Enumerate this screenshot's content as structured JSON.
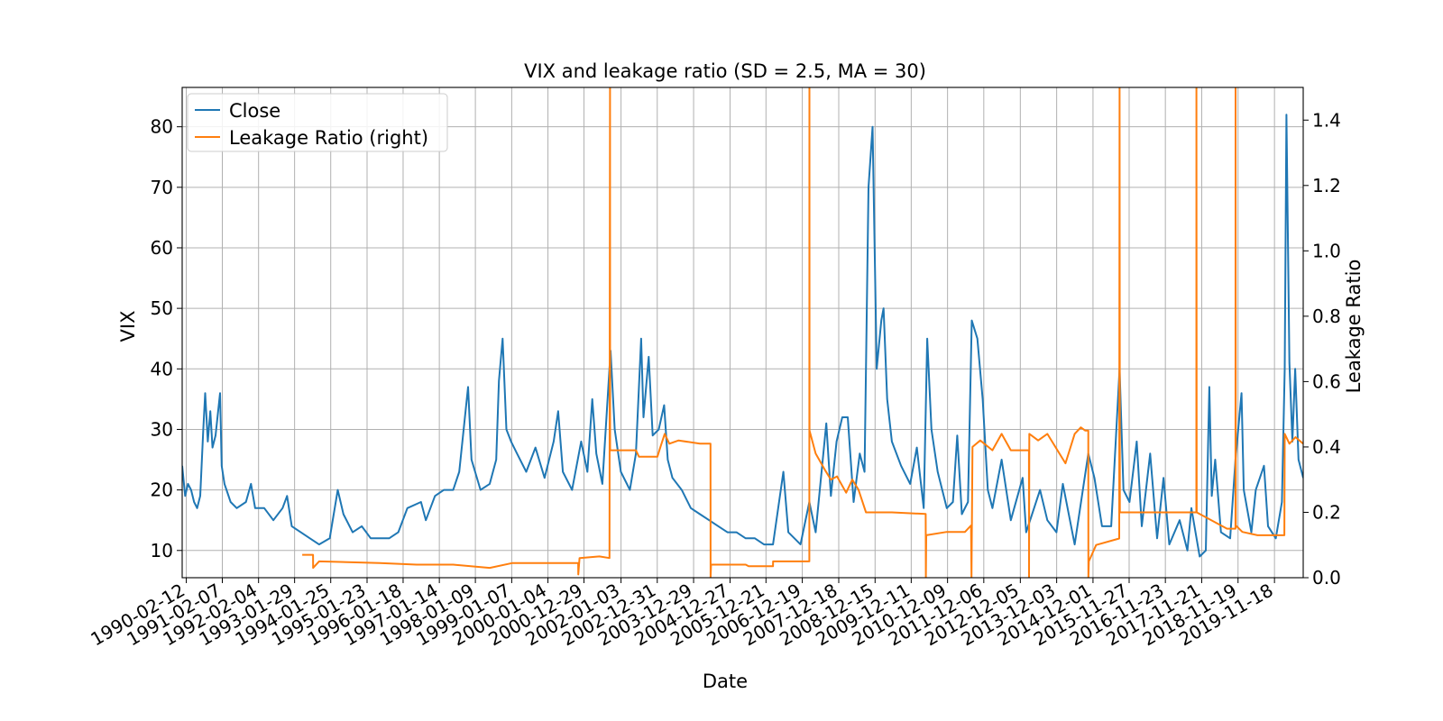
{
  "chart_data": {
    "type": "line",
    "title": "VIX and leakage ratio (SD = 2.5, MA = 30)",
    "xlabel": "Date",
    "ylabel": "VIX",
    "ylabel_right": "Leakage Ratio",
    "xlim": [
      "1990-01-02",
      "2020-08-31"
    ],
    "ylim": [
      5.5,
      86.5
    ],
    "ylim_right": [
      0.0,
      1.5
    ],
    "grid": true,
    "legend_position": "upper-left",
    "x_ticks": [
      "1990-02-12",
      "1991-02-07",
      "1992-02-04",
      "1993-01-29",
      "1994-01-25",
      "1995-01-23",
      "1996-01-18",
      "1997-01-14",
      "1998-01-09",
      "1999-01-07",
      "2000-01-04",
      "2000-12-29",
      "2002-01-03",
      "2002-12-31",
      "2003-12-29",
      "2004-12-27",
      "2005-12-21",
      "2006-12-19",
      "2007-12-18",
      "2008-12-15",
      "2009-12-11",
      "2010-12-09",
      "2011-12-06",
      "2012-12-05",
      "2013-12-03",
      "2014-12-01",
      "2015-11-27",
      "2016-11-23",
      "2017-11-21",
      "2018-11-19",
      "2019-11-18"
    ],
    "y_ticks": [
      10,
      20,
      30,
      40,
      50,
      60,
      70,
      80
    ],
    "y_ticks_right": [
      0.0,
      0.2,
      0.4,
      0.6,
      0.8,
      1.0,
      1.2,
      1.4
    ],
    "series": [
      {
        "name": "Close",
        "axis": "left",
        "color": "#1f77b4",
        "points": [
          [
            "1990-01-02",
            24
          ],
          [
            "1990-02-01",
            19
          ],
          [
            "1990-03-01",
            21
          ],
          [
            "1990-04-01",
            20
          ],
          [
            "1990-05-01",
            18
          ],
          [
            "1990-06-01",
            17
          ],
          [
            "1990-07-01",
            19
          ],
          [
            "1990-08-01",
            30
          ],
          [
            "1990-08-20",
            36
          ],
          [
            "1990-09-15",
            28
          ],
          [
            "1990-10-10",
            33
          ],
          [
            "1990-11-01",
            27
          ],
          [
            "1990-12-01",
            29
          ],
          [
            "1991-01-15",
            36
          ],
          [
            "1991-02-01",
            24
          ],
          [
            "1991-03-01",
            21
          ],
          [
            "1991-05-01",
            18
          ],
          [
            "1991-07-01",
            17
          ],
          [
            "1991-10-01",
            18
          ],
          [
            "1991-11-20",
            21
          ],
          [
            "1992-01-01",
            17
          ],
          [
            "1992-04-01",
            17
          ],
          [
            "1992-07-01",
            15
          ],
          [
            "1992-10-01",
            17
          ],
          [
            "1992-11-15",
            19
          ],
          [
            "1993-01-01",
            14
          ],
          [
            "1993-04-01",
            13
          ],
          [
            "1993-07-01",
            12
          ],
          [
            "1993-10-01",
            11
          ],
          [
            "1994-01-15",
            12
          ],
          [
            "1994-04-05",
            20
          ],
          [
            "1994-06-01",
            16
          ],
          [
            "1994-09-01",
            13
          ],
          [
            "1994-12-01",
            14
          ],
          [
            "1995-03-01",
            12
          ],
          [
            "1995-06-01",
            12
          ],
          [
            "1995-09-01",
            12
          ],
          [
            "1995-12-01",
            13
          ],
          [
            "1996-03-01",
            17
          ],
          [
            "1996-07-15",
            18
          ],
          [
            "1996-09-01",
            15
          ],
          [
            "1996-12-01",
            19
          ],
          [
            "1997-03-01",
            20
          ],
          [
            "1997-06-01",
            20
          ],
          [
            "1997-08-01",
            23
          ],
          [
            "1997-10-28",
            37
          ],
          [
            "1997-12-01",
            25
          ],
          [
            "1998-03-01",
            20
          ],
          [
            "1998-06-01",
            21
          ],
          [
            "1998-08-05",
            25
          ],
          [
            "1998-09-01",
            38
          ],
          [
            "1998-10-08",
            45
          ],
          [
            "1998-11-15",
            30
          ],
          [
            "1999-01-01",
            28
          ],
          [
            "1999-03-01",
            26
          ],
          [
            "1999-06-01",
            23
          ],
          [
            "1999-09-01",
            27
          ],
          [
            "1999-12-01",
            22
          ],
          [
            "2000-03-01",
            28
          ],
          [
            "2000-04-15",
            33
          ],
          [
            "2000-06-01",
            23
          ],
          [
            "2000-09-01",
            20
          ],
          [
            "2000-12-01",
            28
          ],
          [
            "2001-02-01",
            23
          ],
          [
            "2001-03-22",
            35
          ],
          [
            "2001-05-01",
            26
          ],
          [
            "2001-07-01",
            21
          ],
          [
            "2001-09-21",
            43
          ],
          [
            "2001-11-01",
            30
          ],
          [
            "2002-01-01",
            23
          ],
          [
            "2002-04-01",
            20
          ],
          [
            "2002-06-01",
            26
          ],
          [
            "2002-07-23",
            45
          ],
          [
            "2002-08-15",
            32
          ],
          [
            "2002-10-07",
            42
          ],
          [
            "2002-11-15",
            29
          ],
          [
            "2003-01-15",
            30
          ],
          [
            "2003-03-10",
            34
          ],
          [
            "2003-04-15",
            25
          ],
          [
            "2003-06-01",
            22
          ],
          [
            "2003-09-01",
            20
          ],
          [
            "2003-12-01",
            17
          ],
          [
            "2004-03-01",
            16
          ],
          [
            "2004-06-01",
            15
          ],
          [
            "2004-09-01",
            14
          ],
          [
            "2004-12-01",
            13
          ],
          [
            "2005-03-01",
            13
          ],
          [
            "2005-06-01",
            12
          ],
          [
            "2005-09-01",
            12
          ],
          [
            "2005-12-01",
            11
          ],
          [
            "2006-03-01",
            11
          ],
          [
            "2006-06-13",
            23
          ],
          [
            "2006-08-01",
            13
          ],
          [
            "2006-12-01",
            11
          ],
          [
            "2007-02-27",
            18
          ],
          [
            "2007-05-01",
            13
          ],
          [
            "2007-08-16",
            31
          ],
          [
            "2007-10-01",
            19
          ],
          [
            "2007-11-26",
            28
          ],
          [
            "2008-01-22",
            32
          ],
          [
            "2008-03-17",
            32
          ],
          [
            "2008-05-15",
            18
          ],
          [
            "2008-07-15",
            26
          ],
          [
            "2008-09-01",
            23
          ],
          [
            "2008-10-10",
            70
          ],
          [
            "2008-11-20",
            80
          ],
          [
            "2008-12-31",
            40
          ],
          [
            "2009-02-15",
            48
          ],
          [
            "2009-03-10",
            50
          ],
          [
            "2009-04-15",
            35
          ],
          [
            "2009-06-01",
            28
          ],
          [
            "2009-09-01",
            24
          ],
          [
            "2009-12-01",
            21
          ],
          [
            "2010-02-05",
            27
          ],
          [
            "2010-04-15",
            17
          ],
          [
            "2010-05-20",
            45
          ],
          [
            "2010-07-01",
            30
          ],
          [
            "2010-09-01",
            23
          ],
          [
            "2010-12-01",
            17
          ],
          [
            "2011-02-01",
            18
          ],
          [
            "2011-03-16",
            29
          ],
          [
            "2011-05-01",
            16
          ],
          [
            "2011-07-01",
            18
          ],
          [
            "2011-08-08",
            48
          ],
          [
            "2011-10-03",
            45
          ],
          [
            "2011-11-25",
            35
          ],
          [
            "2012-01-15",
            20
          ],
          [
            "2012-03-01",
            17
          ],
          [
            "2012-06-01",
            25
          ],
          [
            "2012-09-01",
            15
          ],
          [
            "2012-12-28",
            22
          ],
          [
            "2013-02-01",
            13
          ],
          [
            "2013-06-20",
            20
          ],
          [
            "2013-09-01",
            15
          ],
          [
            "2013-12-01",
            13
          ],
          [
            "2014-02-03",
            21
          ],
          [
            "2014-06-01",
            11
          ],
          [
            "2014-10-15",
            26
          ],
          [
            "2014-12-15",
            22
          ],
          [
            "2015-03-01",
            14
          ],
          [
            "2015-06-01",
            14
          ],
          [
            "2015-08-24",
            40
          ],
          [
            "2015-10-01",
            20
          ],
          [
            "2015-12-01",
            18
          ],
          [
            "2016-02-11",
            28
          ],
          [
            "2016-04-01",
            14
          ],
          [
            "2016-06-24",
            26
          ],
          [
            "2016-09-01",
            12
          ],
          [
            "2016-11-04",
            22
          ],
          [
            "2017-01-01",
            11
          ],
          [
            "2017-04-15",
            15
          ],
          [
            "2017-07-01",
            10
          ],
          [
            "2017-08-10",
            17
          ],
          [
            "2017-11-01",
            9
          ],
          [
            "2018-01-01",
            10
          ],
          [
            "2018-02-05",
            37
          ],
          [
            "2018-03-01",
            19
          ],
          [
            "2018-04-05",
            25
          ],
          [
            "2018-06-01",
            13
          ],
          [
            "2018-09-01",
            12
          ],
          [
            "2018-10-24",
            25
          ],
          [
            "2018-12-24",
            36
          ],
          [
            "2019-01-15",
            20
          ],
          [
            "2019-04-01",
            13
          ],
          [
            "2019-05-15",
            20
          ],
          [
            "2019-08-05",
            24
          ],
          [
            "2019-09-15",
            14
          ],
          [
            "2019-12-01",
            12
          ],
          [
            "2020-01-31",
            18
          ],
          [
            "2020-02-28",
            40
          ],
          [
            "2020-03-16",
            82
          ],
          [
            "2020-04-15",
            41
          ],
          [
            "2020-05-15",
            28
          ],
          [
            "2020-06-12",
            40
          ],
          [
            "2020-07-15",
            25
          ],
          [
            "2020-08-31",
            22
          ]
        ]
      },
      {
        "name": "Leakage Ratio (right)",
        "axis": "right",
        "color": "#ff7f0e",
        "points": [
          [
            "1993-04-15",
            0.07
          ],
          [
            "1993-08-01",
            0.07
          ],
          [
            "1993-08-02",
            0.03
          ],
          [
            "1993-10-01",
            0.05
          ],
          [
            "1995-06-01",
            0.045
          ],
          [
            "1996-06-01",
            0.04
          ],
          [
            "1997-06-01",
            0.04
          ],
          [
            "1998-06-01",
            0.03
          ],
          [
            "1999-01-15",
            0.045
          ],
          [
            "1999-06-01",
            0.045
          ],
          [
            "2000-06-01",
            0.045
          ],
          [
            "2000-11-01",
            0.045
          ],
          [
            "2000-11-02",
            0.01
          ],
          [
            "2000-11-15",
            0.06
          ],
          [
            "2001-06-01",
            0.065
          ],
          [
            "2001-09-10",
            0.06
          ],
          [
            "2001-09-15",
            1.5
          ],
          [
            "2001-09-16",
            0.39
          ],
          [
            "2002-01-01",
            0.39
          ],
          [
            "2002-06-01",
            0.39
          ],
          [
            "2002-07-01",
            0.37
          ],
          [
            "2003-01-01",
            0.37
          ],
          [
            "2003-02-01",
            0.4
          ],
          [
            "2003-03-15",
            0.44
          ],
          [
            "2003-05-01",
            0.41
          ],
          [
            "2003-08-01",
            0.42
          ],
          [
            "2004-03-01",
            0.41
          ],
          [
            "2004-06-15",
            0.41
          ],
          [
            "2004-06-16",
            0.0
          ],
          [
            "2004-06-20",
            0.04
          ],
          [
            "2005-06-01",
            0.04
          ],
          [
            "2005-07-01",
            0.035
          ],
          [
            "2006-03-01",
            0.035
          ],
          [
            "2006-03-02",
            0.05
          ],
          [
            "2006-12-01",
            0.05
          ],
          [
            "2007-02-27",
            0.05
          ],
          [
            "2007-02-28",
            1.5
          ],
          [
            "2007-03-01",
            0.45
          ],
          [
            "2007-05-01",
            0.38
          ],
          [
            "2007-08-01",
            0.33
          ],
          [
            "2007-10-01",
            0.3
          ],
          [
            "2007-12-01",
            0.31
          ],
          [
            "2008-03-01",
            0.26
          ],
          [
            "2008-05-01",
            0.3
          ],
          [
            "2008-07-01",
            0.27
          ],
          [
            "2008-09-15",
            0.2
          ],
          [
            "2009-06-01",
            0.2
          ],
          [
            "2010-05-05",
            0.195
          ],
          [
            "2010-05-06",
            0.0
          ],
          [
            "2010-05-10",
            0.13
          ],
          [
            "2010-12-01",
            0.14
          ],
          [
            "2011-06-01",
            0.14
          ],
          [
            "2011-08-01",
            0.16
          ],
          [
            "2011-08-05",
            0.0
          ],
          [
            "2011-08-15",
            0.4
          ],
          [
            "2011-11-01",
            0.42
          ],
          [
            "2012-03-01",
            0.39
          ],
          [
            "2012-06-01",
            0.44
          ],
          [
            "2012-09-01",
            0.39
          ],
          [
            "2013-03-01",
            0.39
          ],
          [
            "2013-03-02",
            0.0
          ],
          [
            "2013-03-05",
            0.44
          ],
          [
            "2013-06-01",
            0.42
          ],
          [
            "2013-09-01",
            0.44
          ],
          [
            "2014-03-01",
            0.35
          ],
          [
            "2014-06-01",
            0.44
          ],
          [
            "2014-08-01",
            0.46
          ],
          [
            "2014-09-15",
            0.45
          ],
          [
            "2014-10-15",
            0.45
          ],
          [
            "2014-10-16",
            0.0
          ],
          [
            "2014-10-20",
            0.05
          ],
          [
            "2015-01-01",
            0.1
          ],
          [
            "2015-08-20",
            0.12
          ],
          [
            "2015-08-24",
            1.5
          ],
          [
            "2015-08-26",
            0.2
          ],
          [
            "2016-06-01",
            0.2
          ],
          [
            "2017-06-01",
            0.2
          ],
          [
            "2017-09-28",
            0.2
          ],
          [
            "2017-09-29",
            1.5
          ],
          [
            "2017-10-02",
            0.2
          ],
          [
            "2018-08-01",
            0.15
          ],
          [
            "2018-10-24",
            0.15
          ],
          [
            "2018-10-25",
            1.5
          ],
          [
            "2018-10-28",
            0.16
          ],
          [
            "2019-01-01",
            0.14
          ],
          [
            "2019-06-01",
            0.13
          ],
          [
            "2020-01-01",
            0.13
          ],
          [
            "2020-02-25",
            0.13
          ],
          [
            "2020-02-28",
            0.44
          ],
          [
            "2020-04-15",
            0.41
          ],
          [
            "2020-06-15",
            0.43
          ],
          [
            "2020-08-31",
            0.41
          ]
        ]
      }
    ]
  }
}
